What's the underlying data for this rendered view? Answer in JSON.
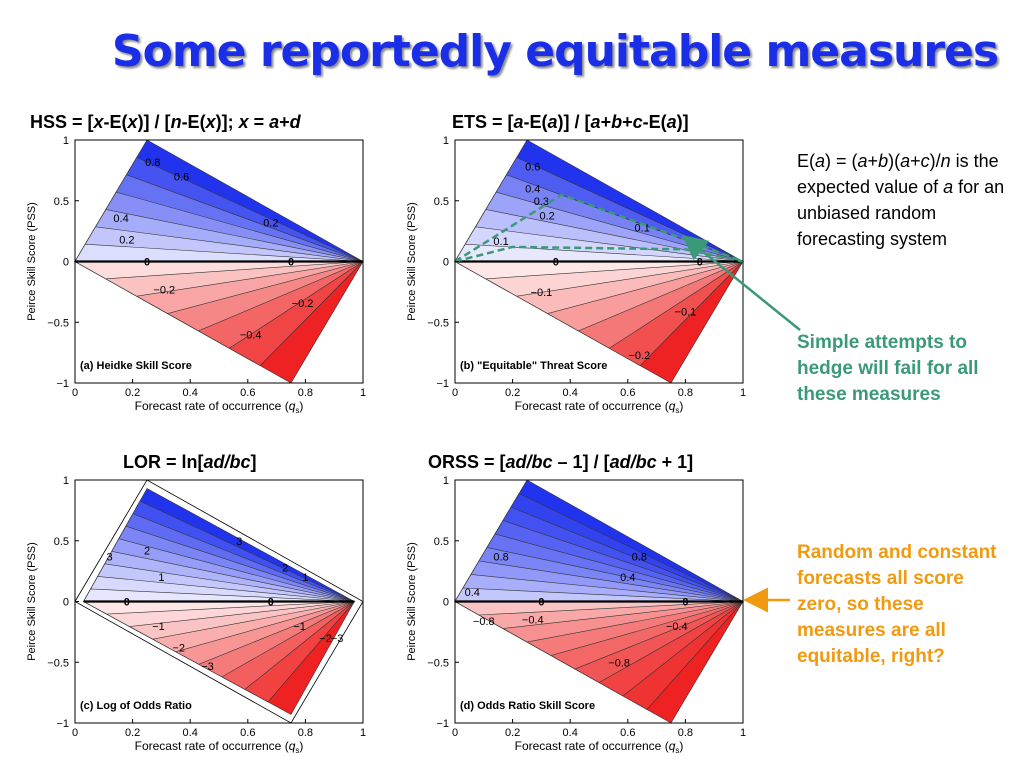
{
  "slide_title": "Some reportedly equitable measures",
  "plots": [
    {
      "id": "hss",
      "heading": [
        [
          "HSS = [",
          ""
        ],
        [
          "x",
          "i"
        ],
        [
          "-E(",
          ""
        ],
        [
          "x",
          "i"
        ],
        [
          ")] / [",
          ""
        ],
        [
          "n",
          "i"
        ],
        [
          "-E(",
          ""
        ],
        [
          "x",
          "i"
        ],
        [
          ")];  ",
          ""
        ],
        [
          "x",
          "i"
        ],
        [
          " = ",
          ""
        ],
        [
          "a",
          "i"
        ],
        [
          "+",
          ""
        ],
        [
          "d",
          "i"
        ]
      ],
      "panel_label": "(a) Heidke Skill Score",
      "ylabel": "Peirce Skill Score (PSS)",
      "xlabel_main": "Forecast rate of occurrence (",
      "xlabel_var": "q",
      "xlabel_sub": "s",
      "xlabel_end": ")",
      "xticks": [
        "0",
        "0.2",
        "0.4",
        "0.6",
        "0.8",
        "1"
      ],
      "yticks": [
        "1",
        "0.5",
        "0",
        "−0.5",
        "−1"
      ],
      "contour_labels": [
        "0.8",
        "0.6",
        "0.4",
        "0.2",
        "0.2",
        "0",
        "0",
        "−0.2",
        "−0.2",
        "−0.4"
      ]
    },
    {
      "id": "ets",
      "heading": [
        [
          "ETS = [",
          ""
        ],
        [
          "a",
          "i"
        ],
        [
          "-E(",
          ""
        ],
        [
          "a",
          "i"
        ],
        [
          ")] / [",
          ""
        ],
        [
          "a",
          "i"
        ],
        [
          "+",
          ""
        ],
        [
          "b",
          "i"
        ],
        [
          "+",
          ""
        ],
        [
          "c",
          "i"
        ],
        [
          "-E(",
          ""
        ],
        [
          "a",
          "i"
        ],
        [
          ")]",
          ""
        ]
      ],
      "panel_label": "(b) \"Equitable\" Threat Score",
      "ylabel": "Peirce Skill Score (PSS)",
      "xlabel_main": "Forecast rate of occurrence (",
      "xlabel_var": "q",
      "xlabel_sub": "s",
      "xlabel_end": ")",
      "xticks": [
        "0",
        "0.2",
        "0.4",
        "0.6",
        "0.8",
        "1"
      ],
      "yticks": [
        "1",
        "0.5",
        "0",
        "−0.5",
        "−1"
      ],
      "contour_labels": [
        "0.6",
        "0.4",
        "0.3",
        "0.2",
        "0.1",
        "0.1",
        "0",
        "0",
        "−0.1",
        "−0.1",
        "−0.2"
      ]
    },
    {
      "id": "lor",
      "heading": [
        [
          "LOR = ln[",
          ""
        ],
        [
          "ad/bc",
          "i"
        ],
        [
          "]",
          ""
        ]
      ],
      "panel_label": "(c) Log of Odds Ratio",
      "ylabel": "Peirce Skill Score (PSS)",
      "xlabel_main": "Forecast rate of occurrence (",
      "xlabel_var": "q",
      "xlabel_sub": "s",
      "xlabel_end": ")",
      "xticks": [
        "0",
        "0.2",
        "0.4",
        "0.6",
        "0.8",
        "1"
      ],
      "yticks": [
        "1",
        "0.5",
        "0",
        "−0.5",
        "−1"
      ],
      "contour_labels": [
        "3",
        "2",
        "3",
        "1",
        "2",
        "1",
        "0",
        "0",
        "−1",
        "−1",
        "−2",
        "−2",
        "−3",
        "−3"
      ]
    },
    {
      "id": "orss",
      "heading": [
        [
          "ORSS = [",
          ""
        ],
        [
          "ad/bc",
          "i"
        ],
        [
          " – 1] / [",
          ""
        ],
        [
          "ad/bc",
          "i"
        ],
        [
          " + 1]",
          ""
        ]
      ],
      "panel_label": "(d) Odds Ratio Skill Score",
      "ylabel": "Peirce Skill Score (PSS)",
      "xlabel_main": "Forecast rate of occurrence (",
      "xlabel_var": "q",
      "xlabel_sub": "s",
      "xlabel_end": ")",
      "xticks": [
        "0",
        "0.2",
        "0.4",
        "0.6",
        "0.8",
        "1"
      ],
      "yticks": [
        "1",
        "0.5",
        "0",
        "−0.5",
        "−1"
      ],
      "contour_labels": [
        "0.8",
        "0.8",
        "0.4",
        "0.4",
        "0",
        "0",
        "−0.4",
        "−0.4",
        "−0.8",
        "−0.8"
      ]
    }
  ],
  "note_expected": [
    [
      "E(",
      ""
    ],
    [
      "a",
      "i"
    ],
    [
      ") = (",
      ""
    ],
    [
      "a",
      "i"
    ],
    [
      "+",
      ""
    ],
    [
      "b",
      "i"
    ],
    [
      ")(",
      ""
    ],
    [
      "a",
      "i"
    ],
    [
      "+",
      ""
    ],
    [
      "c",
      "i"
    ],
    [
      ")/",
      ""
    ],
    [
      "n",
      "i"
    ],
    [
      " is the expected value of ",
      ""
    ],
    [
      "a",
      "i"
    ],
    [
      " for an unbiased random forecasting system",
      ""
    ]
  ],
  "note_hedge": "Simple attempts to hedge will fail for all these measures",
  "note_equitable": "Random and constant forecasts all score zero, so these measures are all equitable, right?",
  "colors": {
    "title": "#1a2ee8",
    "positive_fill": "#2233ee",
    "negative_fill": "#ee2222",
    "hedge_note": "#3a9a78",
    "equitable_note": "#f09a10"
  }
}
